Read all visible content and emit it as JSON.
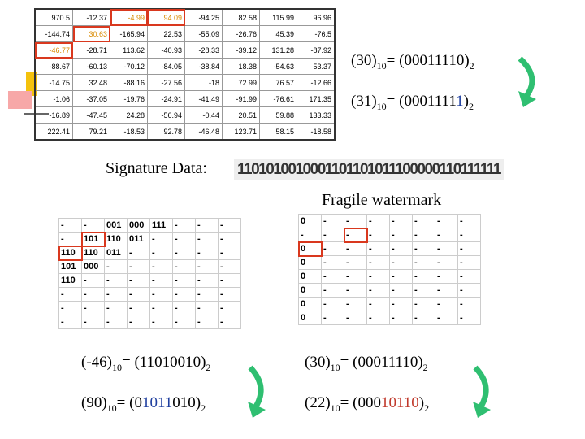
{
  "coeff_table": {
    "rows": [
      [
        "970.5",
        "-12.37",
        "-4.99",
        "94.09",
        "-94.25",
        "82.58",
        "115.99",
        "96.96"
      ],
      [
        "-144.74",
        "30.63",
        "-165.94",
        "22.53",
        "-55.09",
        "-26.76",
        "45.39",
        "-76.5"
      ],
      [
        "-46.77",
        "-28.71",
        "113.62",
        "-40.93",
        "-28.33",
        "-39.12",
        "131.28",
        "-87.92"
      ],
      [
        "-88.67",
        "-60.13",
        "-70.12",
        "-84.05",
        "-38.84",
        "18.38",
        "-54.63",
        "53.37"
      ],
      [
        "-14.75",
        "32.48",
        "-88.16",
        "-27.56",
        "-18",
        "72.99",
        "76.57",
        "-12.66"
      ],
      [
        "-1.06",
        "-37.05",
        "-19.76",
        "-24.91",
        "-41.49",
        "-91.99",
        "-76.61",
        "171.35"
      ],
      [
        "-16.89",
        "-47.45",
        "24.28",
        "-56.94",
        "-0.44",
        "20.51",
        "59.88",
        "133.33"
      ],
      [
        "222.41",
        "79.21",
        "-18.53",
        "92.78",
        "-46.48",
        "123.71",
        "58.15",
        "-18.58"
      ]
    ]
  },
  "equations_top": [
    {
      "lhs": "(30)",
      "lhs_base": "10",
      "rhs": [
        {
          "text": "= (00011110)"
        }
      ],
      "rhs_base": "2"
    },
    {
      "lhs": "(31)",
      "lhs_base": "10",
      "rhs": [
        {
          "text": "= (0001111"
        },
        {
          "text": "1",
          "color": "#1f3f9f"
        },
        {
          "text": ")"
        }
      ],
      "rhs_base": "2"
    }
  ],
  "signature": {
    "label": "Signature Data:",
    "bits": "1101010010001101101011100000110111111"
  },
  "fragile": {
    "label": "Fragile watermark",
    "rows": [
      [
        "0",
        "-",
        "-",
        "-",
        "-",
        "-",
        "-",
        "-"
      ],
      [
        "-",
        "-",
        "-",
        "-",
        "-",
        "-",
        "-",
        "-"
      ],
      [
        "0",
        "-",
        "-",
        "-",
        "-",
        "-",
        "-",
        "-"
      ],
      [
        "0",
        "-",
        "-",
        "-",
        "-",
        "-",
        "-",
        "-"
      ],
      [
        "0",
        "-",
        "-",
        "-",
        "-",
        "-",
        "-",
        "-"
      ],
      [
        "0",
        "-",
        "-",
        "-",
        "-",
        "-",
        "-",
        "-"
      ],
      [
        "0",
        "-",
        "-",
        "-",
        "-",
        "-",
        "-",
        "-"
      ],
      [
        "0",
        "-",
        "-",
        "-",
        "-",
        "-",
        "-",
        "-"
      ]
    ]
  },
  "embed_grid": {
    "rows": [
      [
        "-",
        "-",
        "001",
        "000",
        "111",
        "-",
        "-",
        "-"
      ],
      [
        "-",
        "101",
        "110",
        "011",
        "-",
        "-",
        "-",
        "-"
      ],
      [
        "110",
        "110",
        "011",
        "-",
        "-",
        "-",
        "-",
        "-"
      ],
      [
        "101",
        "000",
        "-",
        "-",
        "-",
        "-",
        "-",
        "-"
      ],
      [
        "110",
        "-",
        "-",
        "-",
        "-",
        "-",
        "-",
        "-"
      ],
      [
        "-",
        "-",
        "-",
        "-",
        "-",
        "-",
        "-",
        "-"
      ],
      [
        "-",
        "-",
        "-",
        "-",
        "-",
        "-",
        "-",
        "-"
      ],
      [
        "-",
        "-",
        "-",
        "-",
        "-",
        "-",
        "-",
        "-"
      ]
    ]
  },
  "equations_bottom": [
    {
      "lhs": "(-46)",
      "lhs_base": "10",
      "rhs": [
        {
          "text": "= (11010010)"
        }
      ],
      "rhs_base": "2"
    },
    {
      "lhs": "(90)",
      "lhs_base": "10",
      "rhs": [
        {
          "text": "= (0"
        },
        {
          "text": "1011",
          "color": "#1f3f9f"
        },
        {
          "text": "010)"
        }
      ],
      "rhs_base": "2"
    },
    {
      "lhs": "(30)",
      "lhs_base": "10",
      "rhs": [
        {
          "text": "= (00011110)"
        }
      ],
      "rhs_base": "2"
    },
    {
      "lhs": "(22)",
      "lhs_base": "10",
      "rhs": [
        {
          "text": "= (000"
        },
        {
          "text": "10110",
          "color": "#c0392b"
        },
        {
          "text": ")"
        }
      ],
      "rhs_base": "2"
    }
  ]
}
